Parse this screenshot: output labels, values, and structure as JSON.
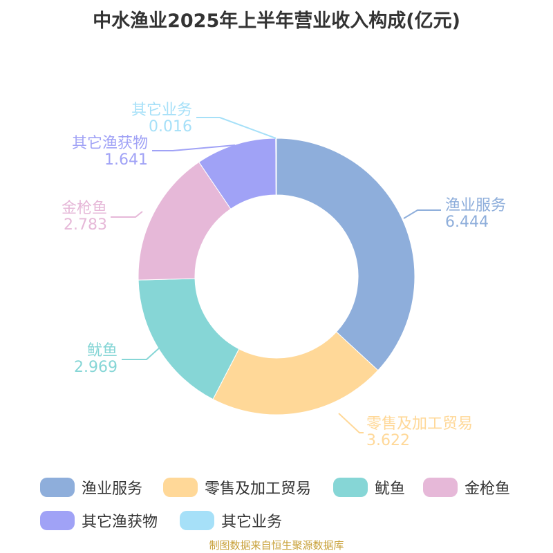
{
  "chart_data": {
    "type": "pie",
    "title": "中水渔业2025年上半年营业收入构成(亿元)",
    "categories": [
      "渔业服务",
      "零售及加工贸易",
      "鱿鱼",
      "金枪鱼",
      "其它渔获物",
      "其它业务"
    ],
    "values": [
      6.444,
      3.622,
      2.969,
      2.783,
      1.641,
      0.016
    ],
    "value_labels": [
      "6.444",
      "3.622",
      "2.969",
      "2.783",
      "1.641",
      "0.016"
    ],
    "colors": [
      "#8eaedb",
      "#ffd898",
      "#86d6d6",
      "#e6b8d8",
      "#a0a2f6",
      "#a6e0f8"
    ],
    "donut": true,
    "legend_position": "bottom"
  },
  "source_text": "制图数据来自恒生聚源数据库"
}
